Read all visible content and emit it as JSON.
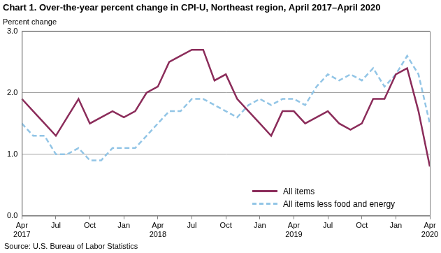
{
  "chart_data": {
    "type": "line",
    "title": "Chart 1. Over-the-year percent change in CPI-U, Northeast region, April 2017–April 2020",
    "ylabel": "Percent change",
    "source": "Source: U.S. Bureau of Labor Statistics",
    "categories": [
      "Apr\n2017",
      null,
      null,
      "Jul",
      null,
      null,
      "Oct",
      null,
      null,
      "Jan",
      null,
      null,
      "Apr\n2018",
      null,
      null,
      "Jul",
      null,
      null,
      "Oct",
      null,
      null,
      "Jan",
      null,
      null,
      "Apr\n2019",
      null,
      null,
      "Jul",
      null,
      null,
      "Oct",
      null,
      null,
      "Jan",
      null,
      null,
      "Apr\n2020"
    ],
    "series": [
      {
        "name": "All items",
        "color": "#8b2c5a",
        "line_style": "solid",
        "values": [
          1.9,
          1.7,
          1.5,
          1.3,
          1.6,
          1.9,
          1.5,
          1.6,
          1.7,
          1.6,
          1.7,
          2.0,
          2.1,
          2.5,
          2.6,
          2.7,
          2.7,
          2.2,
          2.3,
          1.9,
          1.7,
          1.5,
          1.3,
          1.7,
          1.7,
          1.5,
          1.6,
          1.7,
          1.5,
          1.4,
          1.5,
          1.9,
          1.9,
          2.3,
          2.4,
          1.7,
          0.8
        ]
      },
      {
        "name": "All items less food and energy",
        "color": "#92c5e6",
        "line_style": "dashed",
        "values": [
          1.5,
          1.3,
          1.3,
          1.0,
          1.0,
          1.1,
          0.9,
          0.9,
          1.1,
          1.1,
          1.1,
          1.3,
          1.5,
          1.7,
          1.7,
          1.9,
          1.9,
          1.8,
          1.7,
          1.6,
          1.8,
          1.9,
          1.8,
          1.9,
          1.9,
          1.8,
          2.1,
          2.3,
          2.2,
          2.3,
          2.2,
          2.4,
          2.1,
          2.3,
          2.6,
          2.3,
          1.5
        ]
      }
    ],
    "ylim": [
      0,
      3
    ],
    "yticks": [
      {
        "value": 0,
        "label": "0.0"
      },
      {
        "value": 1,
        "label": "1.0"
      },
      {
        "value": 2,
        "label": "2.0"
      },
      {
        "value": 3,
        "label": "3.0"
      }
    ],
    "grid": true,
    "legend": "lower right"
  }
}
